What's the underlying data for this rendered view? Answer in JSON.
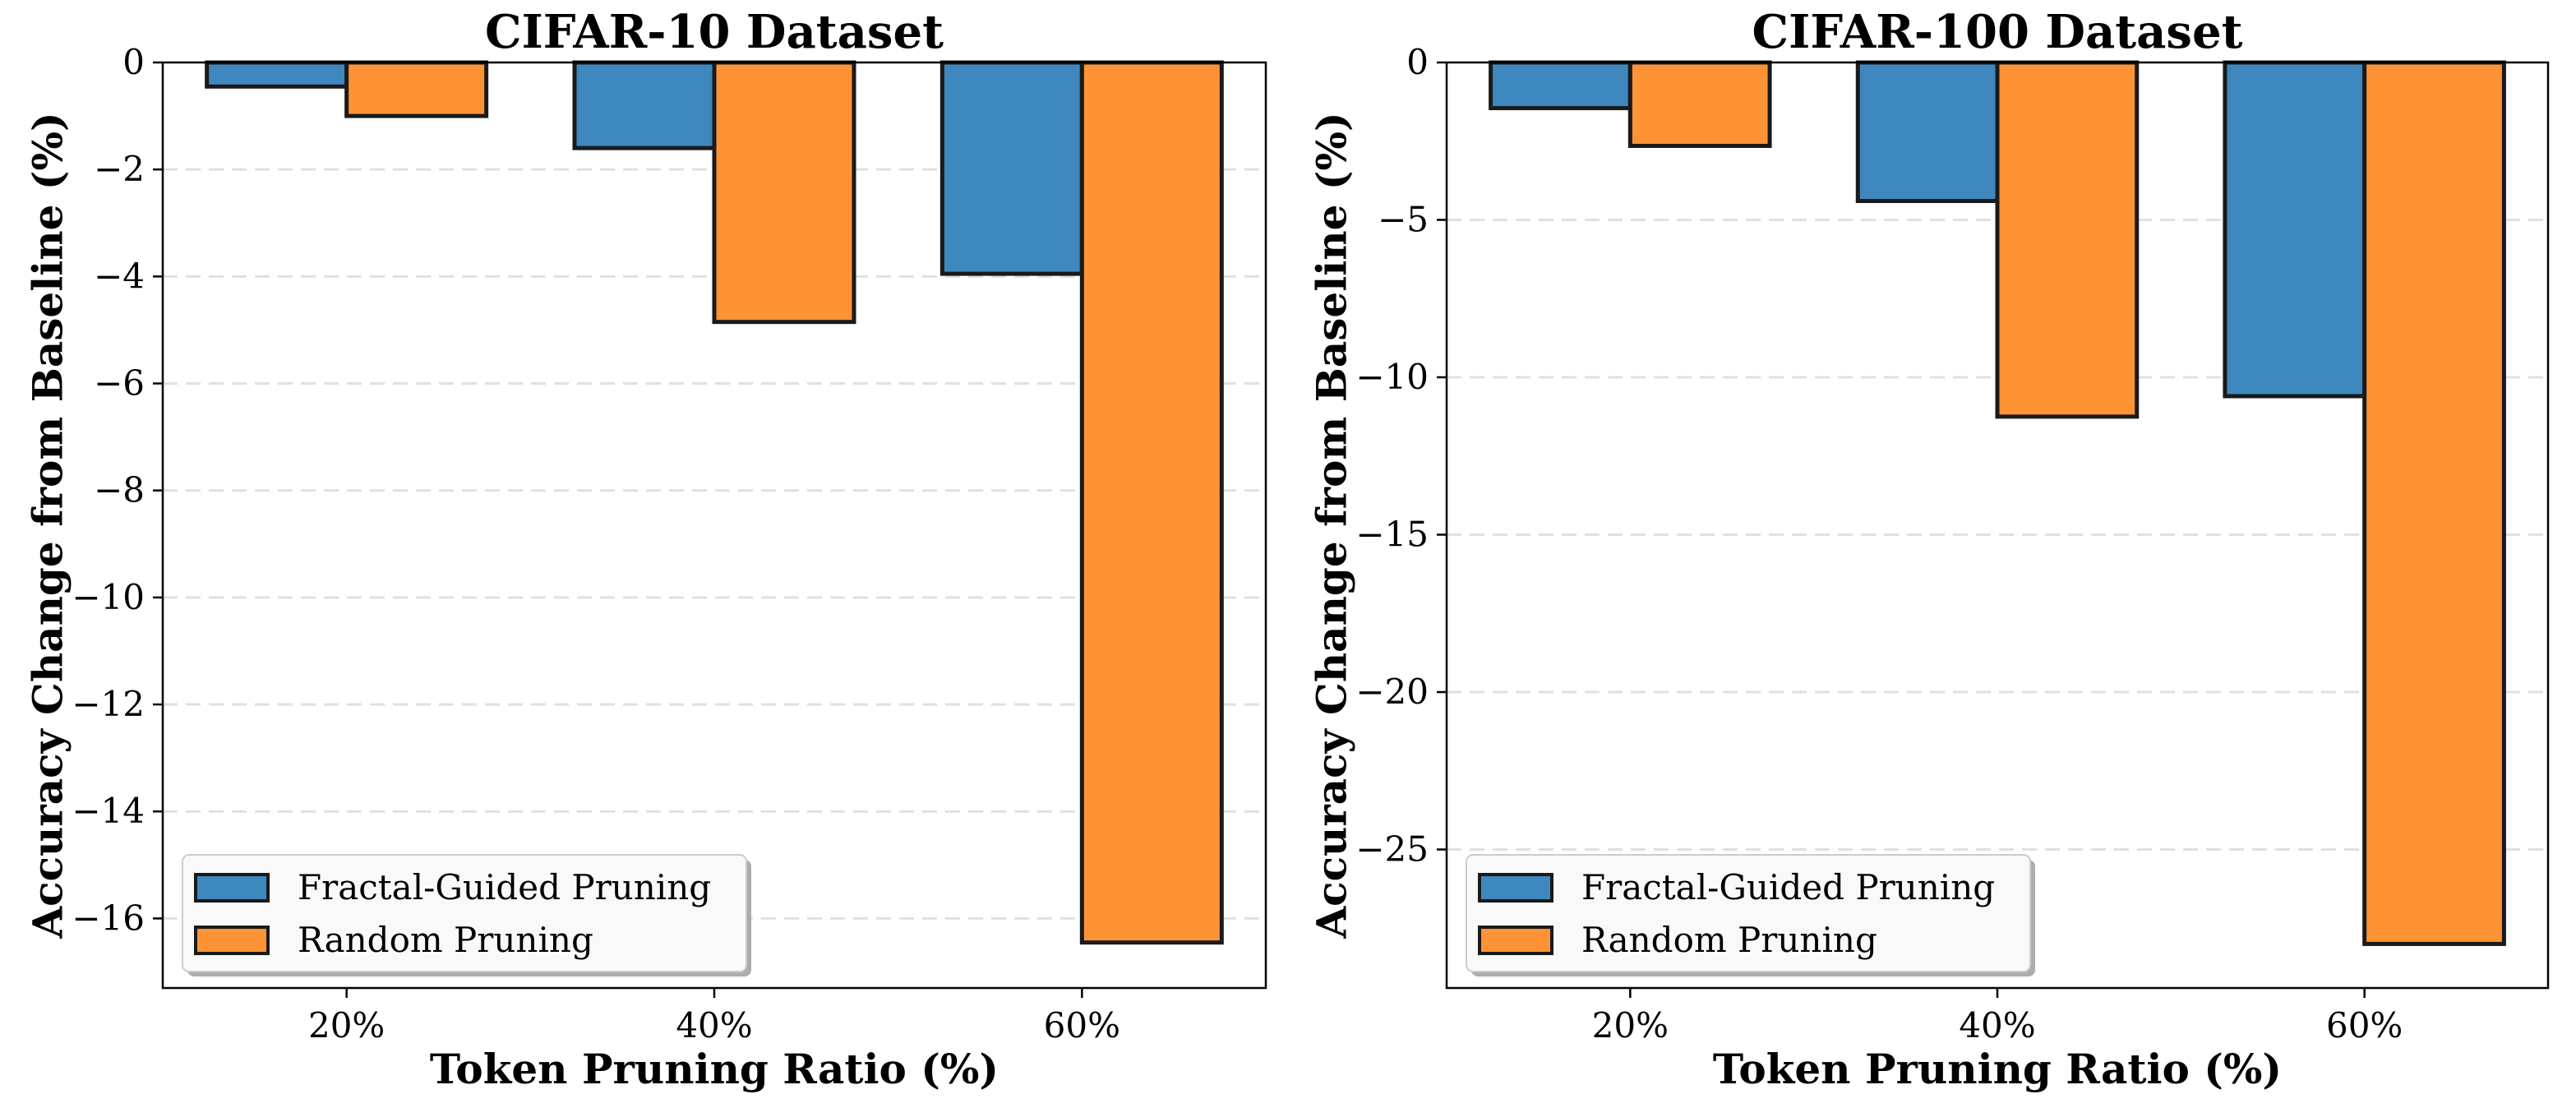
{
  "chart_data": [
    {
      "type": "bar",
      "title": "CIFAR-10 Dataset",
      "xlabel": "Token Pruning Ratio (%)",
      "ylabel": "Accuracy Change from Baseline (%)",
      "categories": [
        "20%",
        "40%",
        "60%"
      ],
      "series": [
        {
          "name": "Fractal-Guided Pruning",
          "color": "#3f88bf",
          "values": [
            -0.45,
            -1.6,
            -3.95
          ]
        },
        {
          "name": "Random Pruning",
          "color": "#fd9335",
          "values": [
            -1.0,
            -4.85,
            -16.45
          ]
        }
      ],
      "ylim": [
        -17.3,
        0
      ],
      "yticks": [
        0,
        -2,
        -4,
        -6,
        -8,
        -10,
        -12,
        -14,
        -16
      ],
      "ytick_labels": [
        "0",
        "−2",
        "−4",
        "−6",
        "−8",
        "−10",
        "−12",
        "−14",
        "−16"
      ],
      "grid": "y-dashed",
      "legend": "lower-left"
    },
    {
      "type": "bar",
      "title": "CIFAR-100 Dataset",
      "xlabel": "Token Pruning Ratio (%)",
      "ylabel": "Accuracy Change from Baseline (%)",
      "categories": [
        "20%",
        "40%",
        "60%"
      ],
      "series": [
        {
          "name": "Fractal-Guided Pruning",
          "color": "#3f88bf",
          "values": [
            -1.45,
            -4.4,
            -10.6
          ]
        },
        {
          "name": "Random Pruning",
          "color": "#fd9335",
          "values": [
            -2.65,
            -11.25,
            -28.0
          ]
        }
      ],
      "ylim": [
        -29.4,
        0
      ],
      "yticks": [
        0,
        -5,
        -10,
        -15,
        -20,
        -25
      ],
      "ytick_labels": [
        "0",
        "−5",
        "−10",
        "−15",
        "−20",
        "−25"
      ],
      "grid": "y-dashed",
      "legend": "lower-left"
    }
  ]
}
